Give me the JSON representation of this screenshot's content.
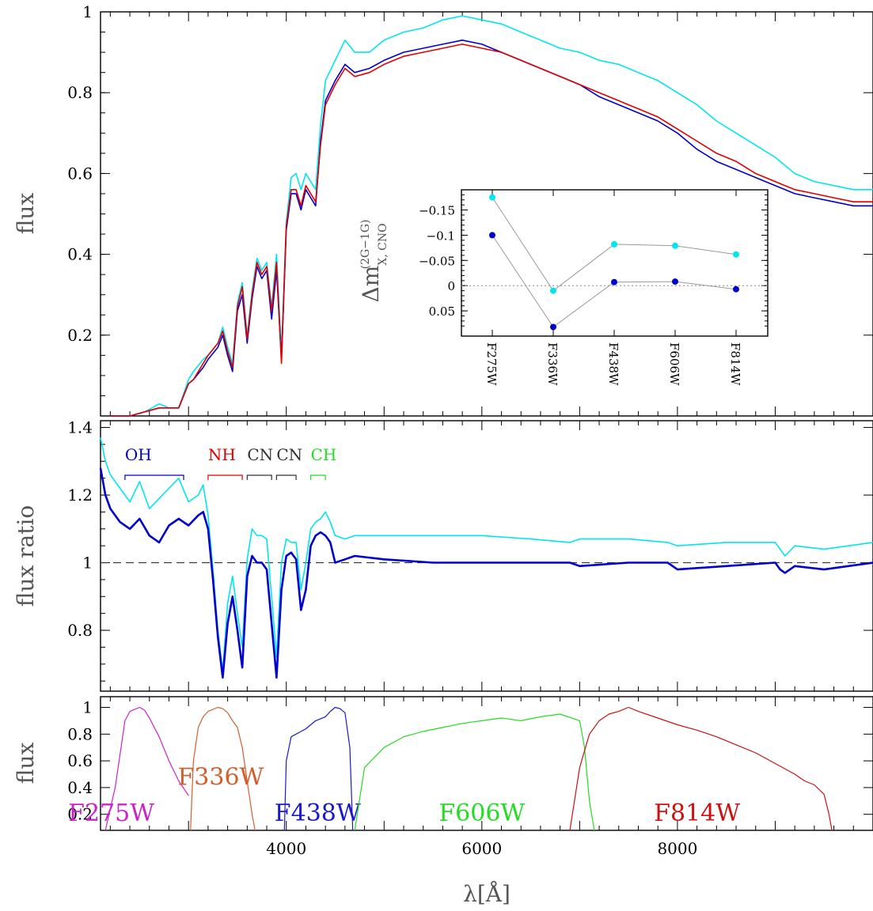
{
  "chart_data": [
    {
      "type": "line",
      "panel": "spectra",
      "ylabel": "flux",
      "xlim": [
        2100,
        10000
      ],
      "ylim": [
        0.0,
        1.0
      ],
      "yticks": [
        "0.2",
        "0.4",
        "0.6",
        "0.8",
        "1"
      ],
      "colors": {
        "cyan": "#00e5ee",
        "blue": "#0000cc",
        "red": "#e00000"
      },
      "series": [
        {
          "color": "cyan",
          "x": [
            2200,
            2400,
            2550,
            2700,
            2800,
            2900,
            3000,
            3050,
            3150,
            3200,
            3300,
            3350,
            3400,
            3450,
            3500,
            3550,
            3600,
            3650,
            3700,
            3750,
            3800,
            3850,
            3900,
            3950,
            4000,
            4050,
            4100,
            4150,
            4200,
            4300,
            4350,
            4400,
            4500,
            4600,
            4700,
            4850,
            5000,
            5200,
            5400,
            5600,
            5800,
            6000,
            6200,
            6400,
            6600,
            6800,
            7000,
            7200,
            7400,
            7600,
            7800,
            8000,
            8200,
            8400,
            8600,
            8800,
            9000,
            9100,
            9200,
            9400,
            9600,
            9800,
            10000
          ],
          "y": [
            0.0,
            0.0,
            0.01,
            0.03,
            0.02,
            0.02,
            0.09,
            0.11,
            0.14,
            0.15,
            0.18,
            0.22,
            0.17,
            0.13,
            0.28,
            0.33,
            0.2,
            0.31,
            0.39,
            0.36,
            0.38,
            0.27,
            0.4,
            0.16,
            0.48,
            0.59,
            0.6,
            0.56,
            0.6,
            0.56,
            0.72,
            0.83,
            0.88,
            0.93,
            0.9,
            0.9,
            0.93,
            0.95,
            0.96,
            0.98,
            0.99,
            0.98,
            0.97,
            0.95,
            0.93,
            0.91,
            0.9,
            0.88,
            0.87,
            0.85,
            0.83,
            0.8,
            0.77,
            0.73,
            0.7,
            0.67,
            0.64,
            0.62,
            0.6,
            0.58,
            0.57,
            0.56,
            0.56
          ]
        },
        {
          "color": "blue",
          "x": [
            2200,
            2400,
            2550,
            2700,
            2800,
            2900,
            3000,
            3050,
            3150,
            3200,
            3300,
            3350,
            3400,
            3450,
            3500,
            3550,
            3600,
            3650,
            3700,
            3750,
            3800,
            3850,
            3900,
            3950,
            4000,
            4050,
            4100,
            4150,
            4200,
            4300,
            4350,
            4400,
            4500,
            4600,
            4700,
            4850,
            5000,
            5200,
            5400,
            5600,
            5800,
            6000,
            6200,
            6400,
            6600,
            6800,
            7000,
            7200,
            7400,
            7600,
            7800,
            8000,
            8200,
            8400,
            8600,
            8800,
            9000,
            9100,
            9200,
            9400,
            9600,
            9800,
            10000
          ],
          "y": [
            0.0,
            0.0,
            0.01,
            0.02,
            0.02,
            0.02,
            0.08,
            0.09,
            0.12,
            0.14,
            0.17,
            0.2,
            0.15,
            0.11,
            0.26,
            0.3,
            0.18,
            0.29,
            0.37,
            0.34,
            0.36,
            0.24,
            0.36,
            0.14,
            0.46,
            0.55,
            0.55,
            0.51,
            0.56,
            0.52,
            0.68,
            0.78,
            0.83,
            0.87,
            0.85,
            0.86,
            0.88,
            0.9,
            0.91,
            0.92,
            0.93,
            0.92,
            0.9,
            0.88,
            0.86,
            0.84,
            0.82,
            0.79,
            0.77,
            0.75,
            0.73,
            0.7,
            0.66,
            0.63,
            0.61,
            0.59,
            0.57,
            0.56,
            0.55,
            0.54,
            0.53,
            0.52,
            0.52
          ]
        },
        {
          "color": "red",
          "x": [
            2200,
            2400,
            2550,
            2700,
            2800,
            2900,
            3000,
            3050,
            3150,
            3200,
            3300,
            3350,
            3400,
            3450,
            3500,
            3550,
            3600,
            3650,
            3700,
            3750,
            3800,
            3850,
            3900,
            3950,
            4000,
            4050,
            4100,
            4150,
            4200,
            4300,
            4350,
            4400,
            4500,
            4600,
            4700,
            4850,
            5000,
            5200,
            5400,
            5600,
            5800,
            6000,
            6200,
            6400,
            6600,
            6800,
            7000,
            7200,
            7400,
            7600,
            7800,
            8000,
            8200,
            8400,
            8600,
            8800,
            9000,
            9100,
            9200,
            9400,
            9600,
            9800,
            10000
          ],
          "y": [
            0.0,
            0.0,
            0.01,
            0.02,
            0.02,
            0.02,
            0.08,
            0.09,
            0.13,
            0.15,
            0.18,
            0.21,
            0.16,
            0.12,
            0.27,
            0.32,
            0.19,
            0.3,
            0.38,
            0.35,
            0.37,
            0.26,
            0.38,
            0.13,
            0.47,
            0.56,
            0.56,
            0.52,
            0.57,
            0.53,
            0.67,
            0.77,
            0.82,
            0.86,
            0.84,
            0.85,
            0.87,
            0.89,
            0.9,
            0.91,
            0.92,
            0.91,
            0.9,
            0.88,
            0.86,
            0.84,
            0.82,
            0.8,
            0.78,
            0.76,
            0.74,
            0.71,
            0.68,
            0.65,
            0.63,
            0.6,
            0.58,
            0.57,
            0.56,
            0.55,
            0.54,
            0.53,
            0.53
          ]
        }
      ]
    },
    {
      "type": "scatter",
      "panel": "inset",
      "ylabel_main": "Δm",
      "ylabel_sub": "X, CNO",
      "ylabel_sup": "(2G−1G)",
      "categories": [
        "F275W",
        "F336W",
        "F438W",
        "F606W",
        "F814W"
      ],
      "ylim": [
        0.1,
        -0.19
      ],
      "yticks": [
        "−0.15",
        "−0.1",
        "−0.05",
        "0",
        "0.05"
      ],
      "reference_line": 0,
      "series": [
        {
          "color": "cyan",
          "values": [
            -0.175,
            0.01,
            -0.082,
            -0.079,
            -0.062
          ]
        },
        {
          "color": "blue",
          "values": [
            -0.1,
            0.082,
            -0.007,
            -0.008,
            0.007
          ]
        }
      ]
    },
    {
      "type": "line",
      "panel": "ratio",
      "ylabel": "flux ratio",
      "xlim": [
        2100,
        10000
      ],
      "ylim": [
        0.62,
        1.42
      ],
      "yticks": [
        "0.8",
        "1",
        "1.2",
        "1.4"
      ],
      "reference_line": 1,
      "molecular_bands": [
        {
          "label": "OH",
          "color": "blue",
          "range": [
            2350,
            2950
          ]
        },
        {
          "label": "NH",
          "color": "red",
          "range": [
            3200,
            3550
          ]
        },
        {
          "label": "CN",
          "color": "black",
          "range": [
            3600,
            3850
          ]
        },
        {
          "label": "CN",
          "color": "black",
          "range": [
            3900,
            4100
          ]
        },
        {
          "label": "CH",
          "color": "green",
          "range": [
            4250,
            4400
          ]
        }
      ],
      "series": [
        {
          "color": "cyan",
          "x": [
            2100,
            2150,
            2200,
            2300,
            2400,
            2500,
            2600,
            2700,
            2800,
            2900,
            3000,
            3100,
            3150,
            3200,
            3250,
            3300,
            3350,
            3400,
            3450,
            3500,
            3550,
            3600,
            3650,
            3700,
            3750,
            3800,
            3850,
            3900,
            3950,
            4000,
            4050,
            4100,
            4150,
            4200,
            4250,
            4300,
            4350,
            4400,
            4450,
            4500,
            4600,
            4700,
            5000,
            5500,
            6000,
            6500,
            6900,
            7000,
            7500,
            7900,
            8000,
            8500,
            9000,
            9050,
            9100,
            9200,
            9500,
            10000
          ],
          "y": [
            1.37,
            1.3,
            1.26,
            1.22,
            1.18,
            1.24,
            1.16,
            1.19,
            1.22,
            1.25,
            1.18,
            1.2,
            1.23,
            1.14,
            0.98,
            0.8,
            0.68,
            0.88,
            0.96,
            0.85,
            0.75,
            1.01,
            1.1,
            1.08,
            1.08,
            1.07,
            0.9,
            0.72,
            1.0,
            1.07,
            1.06,
            1.06,
            0.92,
            1.0,
            1.1,
            1.12,
            1.13,
            1.15,
            1.12,
            1.08,
            1.07,
            1.08,
            1.08,
            1.08,
            1.08,
            1.07,
            1.06,
            1.07,
            1.07,
            1.06,
            1.05,
            1.06,
            1.06,
            1.04,
            1.02,
            1.05,
            1.04,
            1.06
          ]
        },
        {
          "color": "blue",
          "x": [
            2100,
            2150,
            2200,
            2300,
            2400,
            2500,
            2600,
            2700,
            2800,
            2900,
            3000,
            3100,
            3150,
            3200,
            3250,
            3300,
            3350,
            3400,
            3450,
            3500,
            3550,
            3600,
            3650,
            3700,
            3750,
            3800,
            3850,
            3900,
            3950,
            4000,
            4050,
            4100,
            4150,
            4200,
            4250,
            4300,
            4350,
            4400,
            4450,
            4500,
            4600,
            4700,
            5000,
            5500,
            6000,
            6500,
            6900,
            7000,
            7500,
            7900,
            8000,
            8500,
            9000,
            9050,
            9100,
            9200,
            9500,
            10000
          ],
          "y": [
            1.28,
            1.2,
            1.16,
            1.12,
            1.1,
            1.13,
            1.08,
            1.06,
            1.11,
            1.13,
            1.11,
            1.14,
            1.15,
            1.1,
            0.95,
            0.78,
            0.66,
            0.82,
            0.9,
            0.8,
            0.69,
            0.96,
            1.02,
            1.0,
            1.0,
            0.98,
            0.82,
            0.66,
            0.92,
            1.02,
            1.03,
            1.01,
            0.86,
            0.92,
            1.05,
            1.08,
            1.09,
            1.08,
            1.06,
            1.0,
            1.01,
            1.02,
            1.01,
            1.0,
            1.0,
            1.0,
            1.0,
            0.99,
            1.0,
            1.0,
            0.98,
            0.99,
            1.0,
            0.98,
            0.97,
            0.99,
            0.98,
            1.0
          ]
        }
      ]
    },
    {
      "type": "line",
      "panel": "filters",
      "ylabel": "flux",
      "xlabel_main": "λ",
      "xlabel_unit": "Å",
      "xlim": [
        2100,
        10000
      ],
      "ylim": [
        0.08,
        1.08
      ],
      "xticks": [
        "4000",
        "6000",
        "8000"
      ],
      "yticks": [
        "0.2",
        "0.4",
        "0.6",
        "0.8",
        "1"
      ],
      "series": [
        {
          "name": "F275W",
          "color": "#cc22cc",
          "label_x": 2210,
          "label_y": 0.15,
          "x": [
            2150,
            2250,
            2350,
            2400,
            2500,
            2550,
            2600,
            2700,
            2800,
            2900,
            3000
          ],
          "y": [
            0.08,
            0.4,
            0.9,
            0.97,
            1.0,
            0.98,
            0.92,
            0.78,
            0.6,
            0.45,
            0.34
          ]
        },
        {
          "name": "F336W",
          "color": "#d25f2e",
          "label_x": 3330,
          "label_y": 0.42,
          "x": [
            3020,
            3050,
            3100,
            3150,
            3200,
            3300,
            3350,
            3400,
            3450,
            3500,
            3550,
            3600,
            3650,
            3680
          ],
          "y": [
            0.08,
            0.6,
            0.85,
            0.93,
            0.97,
            1.0,
            0.99,
            0.96,
            0.9,
            0.85,
            0.7,
            0.45,
            0.2,
            0.08
          ]
        },
        {
          "name": "F438W",
          "color": "#1a1acc",
          "label_x": 4320,
          "label_y": 0.15,
          "x": [
            3980,
            4000,
            4050,
            4100,
            4200,
            4300,
            4400,
            4450,
            4500,
            4550,
            4600,
            4650,
            4680
          ],
          "y": [
            0.08,
            0.6,
            0.78,
            0.8,
            0.84,
            0.9,
            0.93,
            0.97,
            1.0,
            0.99,
            0.96,
            0.7,
            0.08
          ]
        },
        {
          "name": "F606W",
          "color": "#22dd22",
          "label_x": 6000,
          "label_y": 0.15,
          "x": [
            4700,
            4800,
            5000,
            5200,
            5400,
            5600,
            5800,
            6000,
            6200,
            6400,
            6600,
            6800,
            7000,
            7050,
            7100,
            7150
          ],
          "y": [
            0.08,
            0.55,
            0.7,
            0.78,
            0.82,
            0.85,
            0.88,
            0.9,
            0.92,
            0.9,
            0.93,
            0.95,
            0.9,
            0.7,
            0.3,
            0.08
          ]
        },
        {
          "name": "F814W",
          "color": "#cc1111",
          "label_x": 8200,
          "label_y": 0.15,
          "x": [
            6900,
            7000,
            7100,
            7200,
            7300,
            7400,
            7500,
            7600,
            7800,
            8000,
            8200,
            8400,
            8600,
            8800,
            9000,
            9200,
            9300,
            9400,
            9500,
            9550,
            9580
          ],
          "y": [
            0.08,
            0.55,
            0.8,
            0.9,
            0.95,
            0.97,
            1.0,
            0.97,
            0.92,
            0.87,
            0.83,
            0.78,
            0.72,
            0.66,
            0.58,
            0.5,
            0.45,
            0.42,
            0.35,
            0.2,
            0.08
          ]
        }
      ]
    }
  ]
}
